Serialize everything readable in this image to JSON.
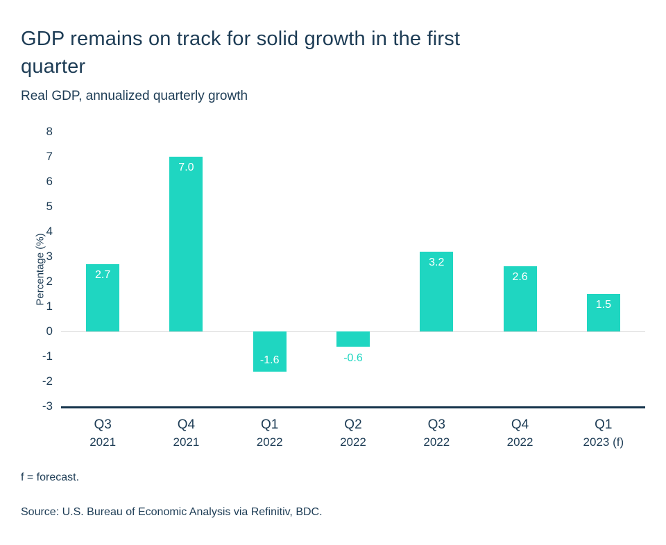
{
  "header": {
    "title": "GDP remains on track for solid growth in the first quarter",
    "subtitle": "Real GDP, annualized quarterly growth"
  },
  "chart_data": {
    "type": "bar",
    "categories": [
      {
        "line1": "Q3",
        "line2": "2021"
      },
      {
        "line1": "Q4",
        "line2": "2021"
      },
      {
        "line1": "Q1",
        "line2": "2022"
      },
      {
        "line1": "Q2",
        "line2": "2022"
      },
      {
        "line1": "Q3",
        "line2": "2022"
      },
      {
        "line1": "Q4",
        "line2": "2022"
      },
      {
        "line1": "Q1",
        "line2": "2023 (f)"
      }
    ],
    "values": [
      2.7,
      7.0,
      -1.6,
      -0.6,
      3.2,
      2.6,
      1.5
    ],
    "value_labels": [
      "2.7",
      "7.0",
      "-1.6",
      "-0.6",
      "3.2",
      "2.6",
      "1.5"
    ],
    "title": "GDP remains on track for solid growth in the first quarter",
    "xlabel": "",
    "ylabel": "Percentage (%)",
    "ylim": [
      -3,
      8
    ],
    "yticks": [
      8,
      7,
      6,
      5,
      4,
      3,
      2,
      1,
      0,
      -1,
      -2,
      -3
    ],
    "grid": "zero-line-only",
    "legend": "none",
    "bar_color": "#1fd6c1",
    "inside_label_color": "#ffffff",
    "outside_label_color": "#1fd6c1",
    "axis_color": "#16344c"
  },
  "footer": {
    "footnote": "f = forecast.",
    "source": "Source: U.S. Bureau of Economic Analysis via Refinitiv, BDC."
  }
}
